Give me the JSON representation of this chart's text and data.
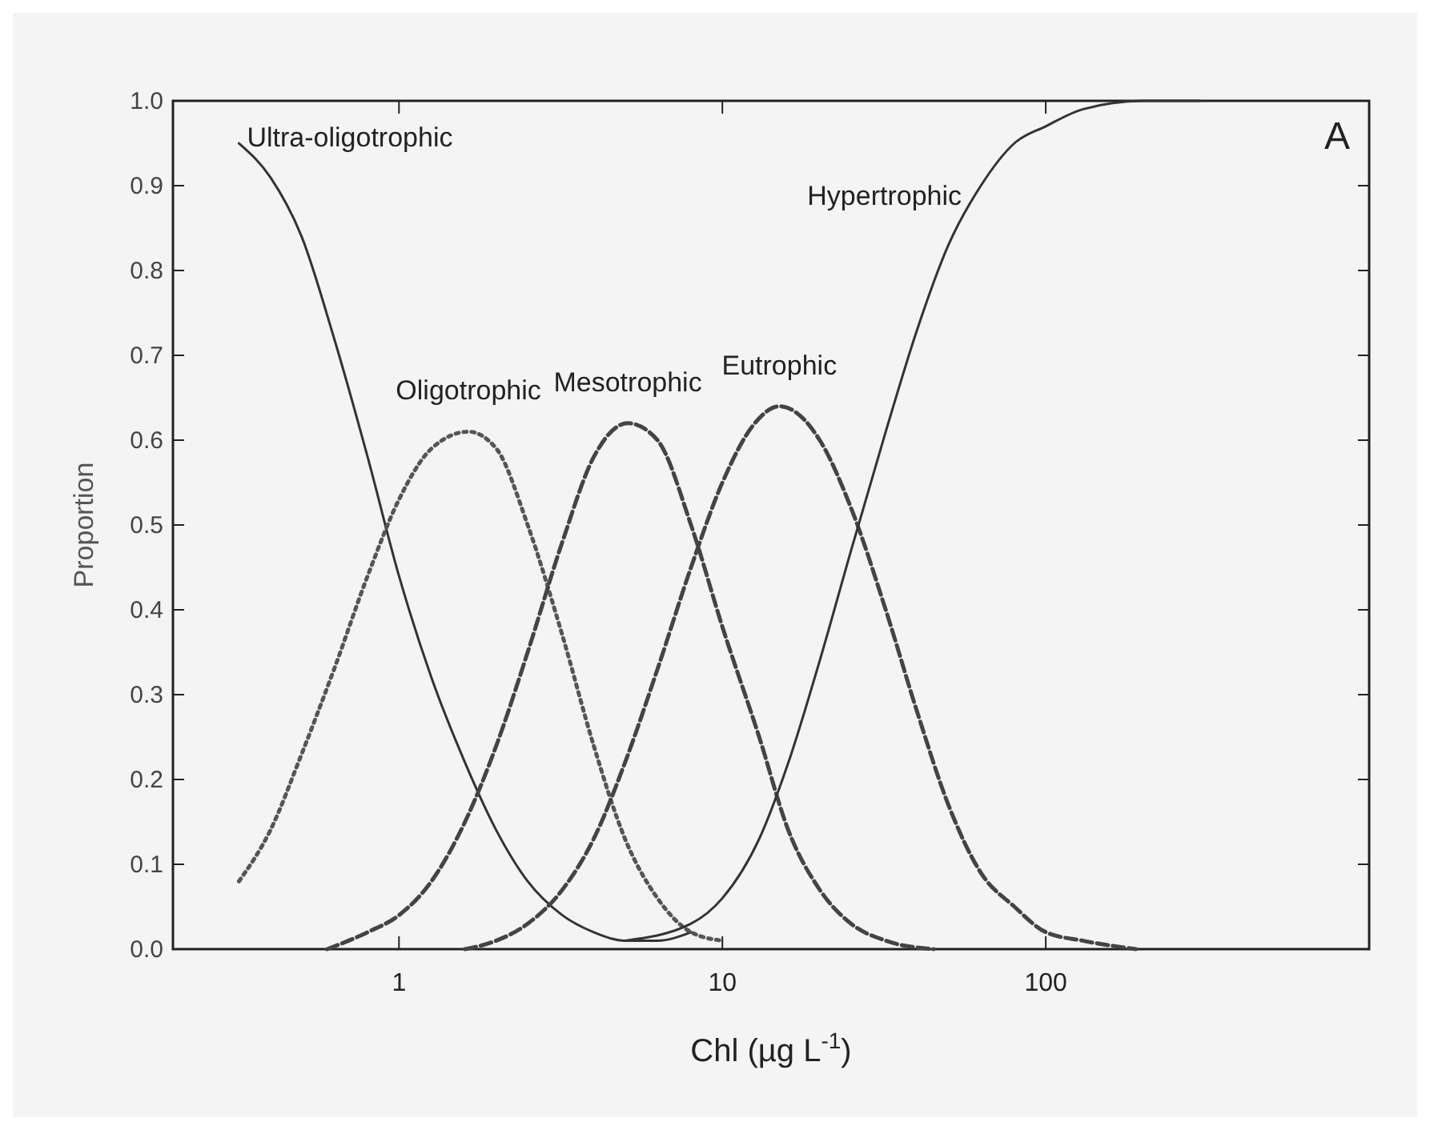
{
  "chart_data": {
    "type": "line",
    "xlabel": "Chl (µg L$^{-1}$)",
    "ylabel": "Proportion",
    "log": "x",
    "xlim": [
      0.2,
      1000
    ],
    "xticks": [
      1,
      10,
      100
    ],
    "ylim": [
      0,
      1
    ],
    "yticks": [
      {
        "value": 0,
        "label": "0.0"
      },
      {
        "value": 0.1,
        "label": "0.1"
      },
      {
        "value": 0.2,
        "label": "0.2"
      },
      {
        "value": 0.3,
        "label": "0.3"
      },
      {
        "value": 0.4,
        "label": "0.4"
      },
      {
        "value": 0.5,
        "label": "0.5"
      },
      {
        "value": 0.6,
        "label": "0.6"
      },
      {
        "value": 0.7,
        "label": "0.7"
      },
      {
        "value": 0.8,
        "label": "0.8"
      },
      {
        "value": 0.9,
        "label": "0.9"
      },
      {
        "value": 1,
        "label": "1.0"
      }
    ],
    "grid": false,
    "marker": "none",
    "annotations": [
      "A"
    ],
    "series": [
      {
        "name": "Ultra-oligotrophic",
        "color": "#333333",
        "line_style": "solid",
        "x": [
          0.32,
          0.4,
          0.5,
          0.63,
          0.8,
          1.0,
          1.26,
          1.6,
          2,
          2.5,
          3.2,
          4,
          5,
          6.3,
          8
        ],
        "values": [
          0.95,
          0.91,
          0.84,
          0.72,
          0.58,
          0.44,
          0.32,
          0.22,
          0.14,
          0.08,
          0.04,
          0.02,
          0.01,
          0.01,
          0.02
        ]
      },
      {
        "name": "Oligotrophic",
        "color": "#555555",
        "line_style": "dotted",
        "x": [
          0.32,
          0.4,
          0.5,
          0.63,
          0.8,
          1.0,
          1.26,
          1.64,
          2,
          2.5,
          3.2,
          4,
          5,
          6.3,
          8,
          10
        ],
        "values": [
          0.08,
          0.14,
          0.23,
          0.33,
          0.44,
          0.53,
          0.59,
          0.61,
          0.59,
          0.5,
          0.37,
          0.24,
          0.13,
          0.06,
          0.02,
          0.01
        ]
      },
      {
        "name": "Mesotrophic",
        "color": "#444444",
        "line_style": "dashed",
        "x": [
          0.6,
          0.8,
          1,
          1.26,
          1.6,
          2,
          2.5,
          3.2,
          4,
          5.1,
          6.3,
          8,
          10,
          13,
          16,
          20,
          25,
          32,
          45
        ],
        "values": [
          0,
          0.02,
          0.04,
          0.08,
          0.15,
          0.24,
          0.35,
          0.48,
          0.58,
          0.62,
          0.6,
          0.5,
          0.38,
          0.25,
          0.14,
          0.07,
          0.03,
          0.01,
          0
        ]
      },
      {
        "name": "Eutrophic",
        "color": "#444444",
        "line_style": "dashed",
        "x": [
          1.6,
          2,
          2.5,
          3.2,
          4,
          5,
          6.3,
          8,
          10,
          12.6,
          15,
          20,
          25,
          32,
          40,
          50,
          63,
          80,
          100,
          130,
          190
        ],
        "values": [
          0,
          0.01,
          0.03,
          0.07,
          0.13,
          0.22,
          0.33,
          0.45,
          0.55,
          0.62,
          0.64,
          0.6,
          0.52,
          0.4,
          0.28,
          0.17,
          0.09,
          0.05,
          0.02,
          0.01,
          0
        ]
      },
      {
        "name": "Hypertrophic",
        "color": "#333333",
        "line_style": "solid",
        "x": [
          5,
          8,
          10,
          13,
          16,
          20,
          25,
          32,
          40,
          50,
          63,
          80,
          100,
          130,
          200,
          300
        ],
        "values": [
          0.01,
          0.03,
          0.06,
          0.13,
          0.22,
          0.34,
          0.47,
          0.61,
          0.73,
          0.83,
          0.9,
          0.95,
          0.97,
          0.99,
          1.0,
          1.0
        ]
      }
    ]
  }
}
